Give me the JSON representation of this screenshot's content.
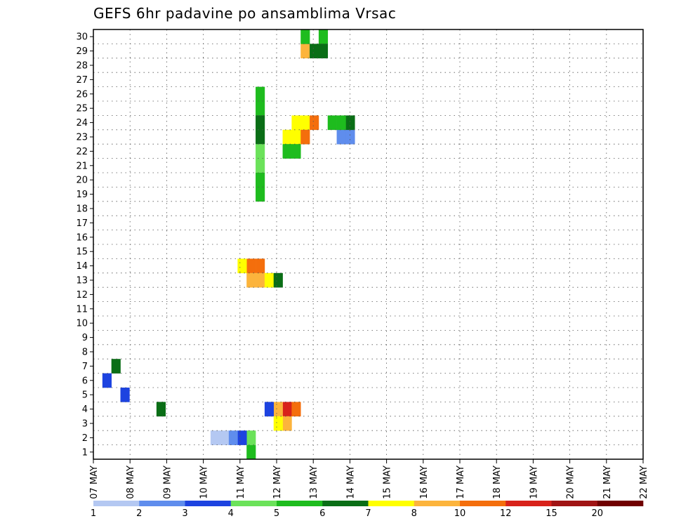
{
  "chart_data": {
    "type": "heatmap",
    "title": "GEFS 6hr padavine po ansamblima Vrsac",
    "xlabel": "",
    "ylabel": "",
    "x_tick_labels": [
      "07 MAY",
      "08 MAY",
      "09 MAY",
      "10 MAY",
      "11 MAY",
      "12 MAY",
      "13 MAY",
      "14 MAY",
      "15 MAY",
      "16 MAY",
      "17 MAY",
      "18 MAY",
      "19 MAY",
      "20 MAY",
      "21 MAY",
      "22 MAY"
    ],
    "y_tick_labels": [
      "1",
      "2",
      "3",
      "4",
      "5",
      "6",
      "7",
      "8",
      "9",
      "10",
      "11",
      "12",
      "13",
      "14",
      "15",
      "16",
      "17",
      "18",
      "19",
      "20",
      "21",
      "22",
      "23",
      "24",
      "25",
      "26",
      "27",
      "28",
      "29",
      "30"
    ],
    "xlim": [
      0,
      61
    ],
    "ylim": [
      0,
      30
    ],
    "grid": true,
    "legend": {
      "position": "bottom",
      "labels": [
        "1",
        "2",
        "3",
        "4",
        "5",
        "6",
        "7",
        "8",
        "10",
        "12",
        "15",
        "20"
      ],
      "colors": [
        "#b4c8f2",
        "#5f8ded",
        "#1d43e0",
        "#6be25a",
        "#1ebc1e",
        "#0a6e16",
        "#ffff00",
        "#fcb43c",
        "#f46e0c",
        "#d8221a",
        "#a01414",
        "#700000"
      ]
    },
    "levels": [
      1,
      2,
      3,
      4,
      5,
      6,
      7,
      8,
      10,
      12,
      15,
      20
    ],
    "cells": [
      [
        23,
        29,
        8
      ],
      [
        23,
        30,
        5
      ],
      [
        25,
        30,
        5
      ],
      [
        24,
        29,
        6
      ],
      [
        25,
        29,
        6
      ],
      [
        18,
        26,
        5
      ],
      [
        18,
        25,
        5
      ],
      [
        18,
        24,
        6
      ],
      [
        18,
        23,
        6
      ],
      [
        18,
        22,
        4
      ],
      [
        18,
        21,
        4
      ],
      [
        18,
        20,
        5
      ],
      [
        18,
        19,
        5
      ],
      [
        22,
        24,
        7
      ],
      [
        23,
        24,
        7
      ],
      [
        24,
        24,
        11
      ],
      [
        22,
        23,
        7
      ],
      [
        23,
        23,
        10
      ],
      [
        21,
        23,
        7
      ],
      [
        22,
        22,
        5
      ],
      [
        21,
        22,
        5
      ],
      [
        18,
        14,
        11
      ],
      [
        17,
        14,
        10
      ],
      [
        16,
        14,
        7
      ],
      [
        17,
        13,
        9
      ],
      [
        18,
        13,
        8
      ],
      [
        19,
        13,
        7
      ],
      [
        20,
        13,
        6
      ],
      [
        21,
        4,
        12
      ],
      [
        22,
        4,
        11
      ],
      [
        20,
        4,
        8
      ],
      [
        19,
        4,
        3
      ],
      [
        21,
        3,
        9
      ],
      [
        20,
        3,
        7
      ],
      [
        17,
        1,
        5
      ],
      [
        17,
        2,
        4
      ],
      [
        16,
        2,
        3
      ],
      [
        15,
        2,
        2
      ],
      [
        14,
        2,
        1
      ],
      [
        13,
        2,
        1
      ],
      [
        27,
        23,
        2
      ],
      [
        28,
        23,
        2
      ],
      [
        28,
        24,
        6
      ],
      [
        27,
        24,
        5
      ],
      [
        26,
        24,
        5
      ],
      [
        2,
        7,
        6
      ],
      [
        1,
        6,
        3
      ],
      [
        3,
        5,
        3
      ],
      [
        7,
        4,
        6
      ]
    ]
  }
}
